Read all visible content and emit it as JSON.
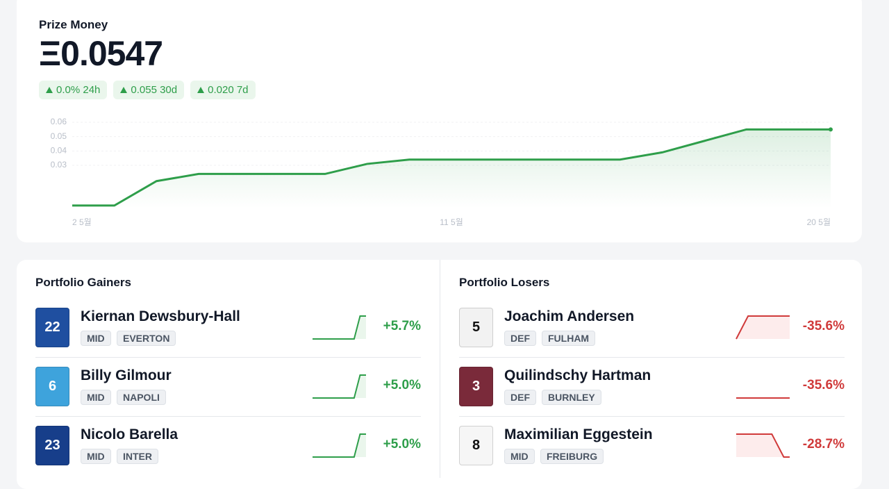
{
  "prize": {
    "title": "Prize Money",
    "value": "Ξ0.0547",
    "badges": [
      "0.0% 24h",
      "0.055 30d",
      "0.020 7d"
    ],
    "chart": {
      "type": "line",
      "color": "#2e9e4a",
      "categories": [
        "2 5월",
        null,
        null,
        null,
        null,
        null,
        null,
        null,
        null,
        "11 5월",
        null,
        null,
        null,
        null,
        null,
        null,
        null,
        null,
        "20 5월"
      ],
      "values": [
        0.002,
        0.002,
        0.019,
        0.024,
        0.024,
        0.024,
        0.024,
        0.031,
        0.034,
        0.034,
        0.034,
        0.034,
        0.034,
        0.034,
        0.039,
        0.047,
        0.055,
        0.055,
        0.055
      ],
      "ylim": [
        0,
        0.06
      ],
      "yticks": [
        0.03,
        0.04,
        0.05,
        0.06
      ],
      "grid": true
    }
  },
  "gainers": {
    "title": "Portfolio Gainers",
    "color": "#2e9e4a",
    "fill": "#eaf6ec",
    "players": [
      {
        "number": "22",
        "jersey": "#1f4fa0",
        "name": "Kiernan Dewsbury-Hall",
        "position": "MID",
        "club": "EVERTON",
        "spark": [
          0,
          0,
          0,
          0,
          0,
          0,
          0,
          0,
          1,
          1
        ],
        "change": "+5.7%"
      },
      {
        "number": "6",
        "jersey": "#3ea3dc",
        "name": "Billy Gilmour",
        "position": "MID",
        "club": "NAPOLI",
        "spark": [
          0,
          0,
          0,
          0,
          0,
          0,
          0,
          0,
          1,
          1
        ],
        "change": "+5.0%"
      },
      {
        "number": "23",
        "jersey": "#173e8a",
        "name": "Nicolo Barella",
        "position": "MID",
        "club": "INTER",
        "spark": [
          0,
          0,
          0,
          0,
          0,
          0,
          0,
          0,
          1,
          1
        ],
        "change": "+5.0%"
      }
    ]
  },
  "losers": {
    "title": "Portfolio Losers",
    "color": "#d03a3a",
    "fill": "#fdecec",
    "players": [
      {
        "number": "5",
        "jersey": "#f2f2f2",
        "name": "Joachim Andersen",
        "position": "DEF",
        "club": "FULHAM",
        "spark": [
          0,
          0.5,
          1,
          1,
          1,
          1,
          1,
          1,
          1,
          1
        ],
        "change": "-35.6%"
      },
      {
        "number": "3",
        "jersey": "#7a2a3a",
        "name": "Quilindschy Hartman",
        "position": "DEF",
        "club": "BURNLEY",
        "spark": [
          0,
          0,
          0,
          0,
          0,
          0,
          0,
          0,
          0,
          0
        ],
        "change": "-35.6%"
      },
      {
        "number": "8",
        "jersey": "#f6f6f6",
        "name": "Maximilian Eggestein",
        "position": "MID",
        "club": "FREIBURG",
        "spark": [
          1,
          1,
          1,
          1,
          1,
          1,
          1,
          0.5,
          0,
          0
        ],
        "change": "-28.7%"
      }
    ]
  }
}
